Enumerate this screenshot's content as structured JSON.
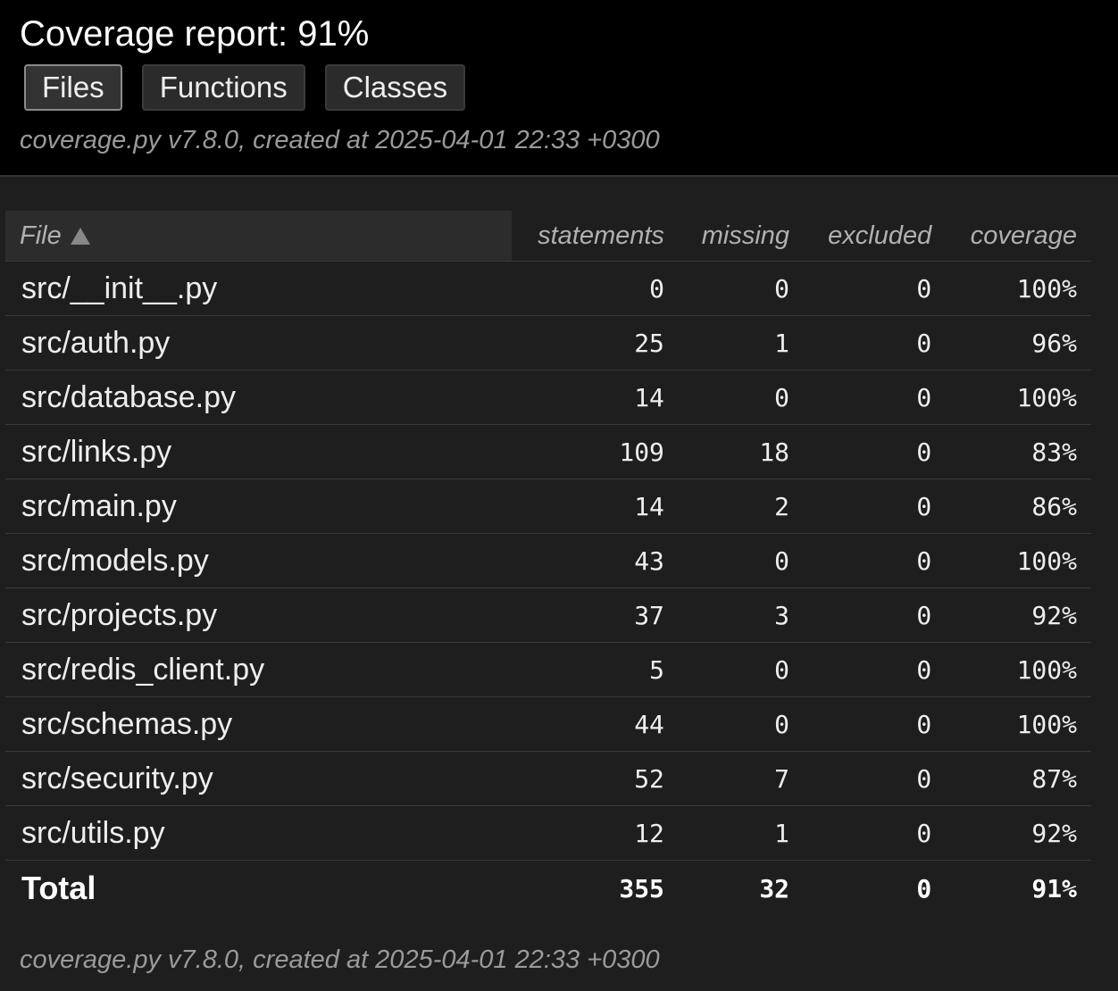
{
  "header": {
    "title": "Coverage report: 91%",
    "tabs": [
      {
        "label": "Files",
        "active": true
      },
      {
        "label": "Functions",
        "active": false
      },
      {
        "label": "Classes",
        "active": false
      }
    ],
    "meta": "coverage.py v7.8.0, created at 2025-04-01 22:33 +0300"
  },
  "table": {
    "columns": [
      "File",
      "statements",
      "missing",
      "excluded",
      "coverage"
    ],
    "sort_icon": "sort-ascending-icon",
    "rows": [
      {
        "file": "src/__init__.py",
        "statements": "0",
        "missing": "0",
        "excluded": "0",
        "coverage": "100%"
      },
      {
        "file": "src/auth.py",
        "statements": "25",
        "missing": "1",
        "excluded": "0",
        "coverage": "96%"
      },
      {
        "file": "src/database.py",
        "statements": "14",
        "missing": "0",
        "excluded": "0",
        "coverage": "100%"
      },
      {
        "file": "src/links.py",
        "statements": "109",
        "missing": "18",
        "excluded": "0",
        "coverage": "83%"
      },
      {
        "file": "src/main.py",
        "statements": "14",
        "missing": "2",
        "excluded": "0",
        "coverage": "86%"
      },
      {
        "file": "src/models.py",
        "statements": "43",
        "missing": "0",
        "excluded": "0",
        "coverage": "100%"
      },
      {
        "file": "src/projects.py",
        "statements": "37",
        "missing": "3",
        "excluded": "0",
        "coverage": "92%"
      },
      {
        "file": "src/redis_client.py",
        "statements": "5",
        "missing": "0",
        "excluded": "0",
        "coverage": "100%"
      },
      {
        "file": "src/schemas.py",
        "statements": "44",
        "missing": "0",
        "excluded": "0",
        "coverage": "100%"
      },
      {
        "file": "src/security.py",
        "statements": "52",
        "missing": "7",
        "excluded": "0",
        "coverage": "87%"
      },
      {
        "file": "src/utils.py",
        "statements": "12",
        "missing": "1",
        "excluded": "0",
        "coverage": "92%"
      }
    ],
    "total": {
      "file": "Total",
      "statements": "355",
      "missing": "32",
      "excluded": "0",
      "coverage": "91%"
    }
  },
  "footer": {
    "meta": "coverage.py v7.8.0, created at 2025-04-01 22:33 +0300"
  },
  "colors": {
    "header_bg": "#000000",
    "body_bg": "#1e1e1e",
    "text": "#eeeeee",
    "muted": "#9a9a9a"
  }
}
